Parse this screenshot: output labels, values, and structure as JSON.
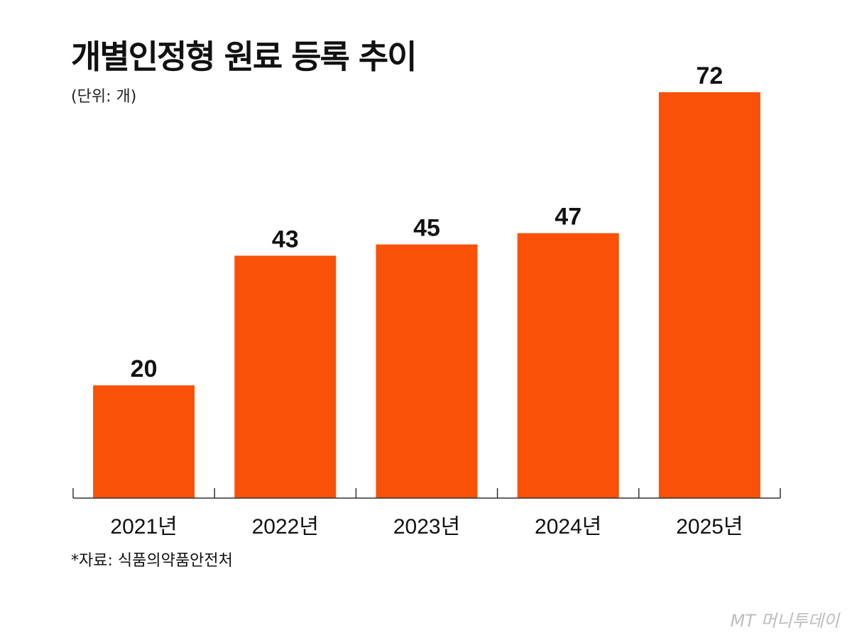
{
  "title": "개별인정형 원료 등록 추이",
  "unit": "(단위: 개)",
  "source": "*자료: 식품의약품안전처",
  "brand": "MT 머니투데이",
  "colors": {
    "bar": "#F95108",
    "axis": "#333333"
  },
  "chart_data": {
    "type": "bar",
    "title": "개별인정형 원료 등록 추이",
    "ylabel": "(단위: 개)",
    "xlabel": "",
    "categories": [
      "2021년",
      "2022년",
      "2023년",
      "2024년",
      "2025년"
    ],
    "values": [
      20,
      43,
      45,
      47,
      72
    ],
    "ylim": [
      0,
      72
    ],
    "grid": false
  }
}
